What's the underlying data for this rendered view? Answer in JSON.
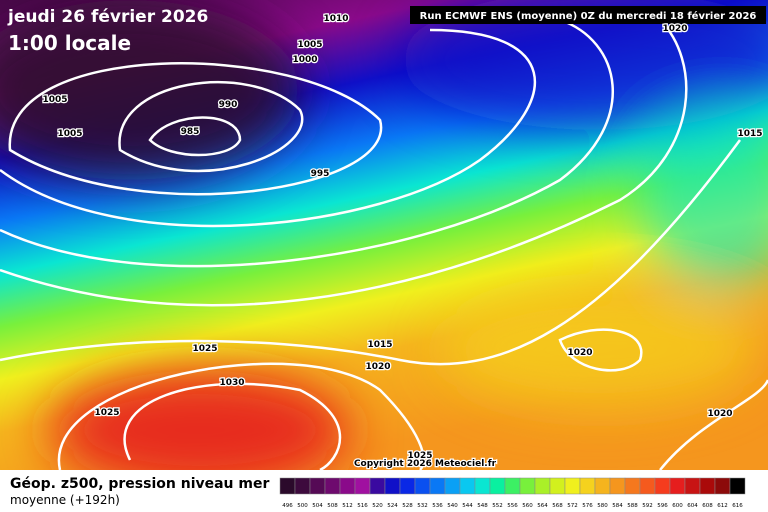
{
  "header": {
    "date": "jeudi 26 février 2026",
    "time": "1:00 locale",
    "run": "Run ECMWF ENS (moyenne) 0Z du mercredi 18 février 2026"
  },
  "isobar_labels": [
    "1010",
    "1005",
    "1000",
    "1005",
    "1005",
    "990",
    "985",
    "995",
    "1015",
    "1020",
    "1025",
    "1030",
    "1025",
    "1015",
    "1020",
    "1020",
    "1020",
    "1025"
  ],
  "copyright": "Copyright 2026 Meteociel.fr",
  "footer": {
    "title": "Géop. z500, pression niveau mer",
    "subtitle": "moyenne  (+192h)"
  },
  "legend": {
    "values": [
      496,
      500,
      504,
      508,
      512,
      516,
      520,
      524,
      528,
      532,
      536,
      540,
      544,
      548,
      552,
      556,
      560,
      564,
      568,
      572,
      576,
      580,
      584,
      588,
      592,
      596,
      600,
      604,
      608,
      612,
      616
    ],
    "colors": [
      "#2b0a2b",
      "#3d0a3d",
      "#550a55",
      "#6e0a6e",
      "#8a0a8a",
      "#a010a0",
      "#3a0aa0",
      "#1010c8",
      "#0a28e6",
      "#0a50f0",
      "#0a78f5",
      "#0aa0f5",
      "#0ac8f0",
      "#0ae6d2",
      "#0af0a0",
      "#3cf064",
      "#78f03c",
      "#aaf028",
      "#d2f01e",
      "#f0f01e",
      "#f5d21e",
      "#f5b41e",
      "#f5961e",
      "#f5781e",
      "#f55a1e",
      "#f53c1e",
      "#e61e1e",
      "#c81414",
      "#aa0a0a",
      "#8c0a0a",
      "#000000"
    ]
  }
}
